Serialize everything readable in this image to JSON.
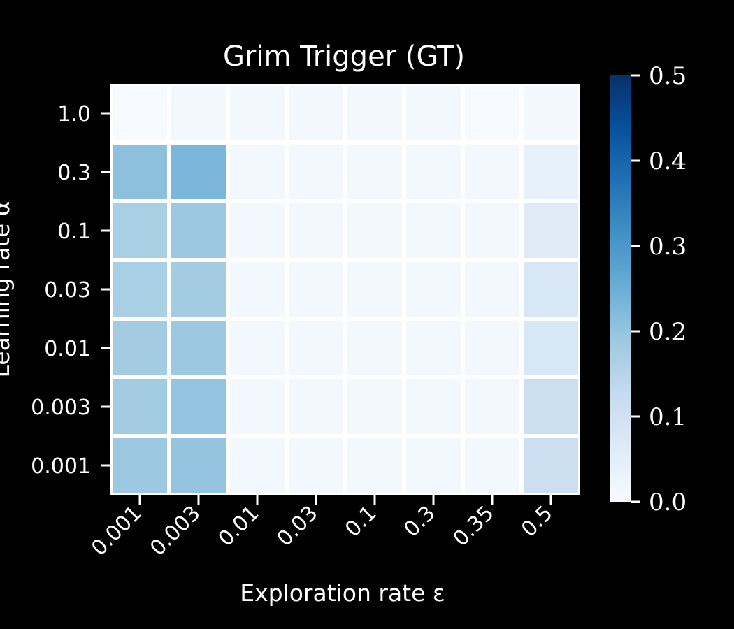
{
  "chart_data": {
    "type": "heatmap",
    "title": "Grim Trigger (GT)",
    "xlabel": "Exploration rate ε",
    "ylabel": "Learning rate α",
    "x_categories": [
      "0.001",
      "0.003",
      "0.01",
      "0.03",
      "0.1",
      "0.3",
      "0.35",
      "0.5"
    ],
    "y_categories": [
      "1.0",
      "0.3",
      "0.1",
      "0.03",
      "0.01",
      "0.003",
      "0.001"
    ],
    "values": [
      [
        0.0,
        0.01,
        0.01,
        0.01,
        0.01,
        0.01,
        0.0,
        0.01
      ],
      [
        0.21,
        0.23,
        0.01,
        0.01,
        0.01,
        0.01,
        0.01,
        0.04
      ],
      [
        0.17,
        0.19,
        0.01,
        0.01,
        0.01,
        0.01,
        0.01,
        0.06
      ],
      [
        0.17,
        0.18,
        0.01,
        0.01,
        0.01,
        0.01,
        0.01,
        0.08
      ],
      [
        0.18,
        0.19,
        0.01,
        0.01,
        0.01,
        0.01,
        0.01,
        0.08
      ],
      [
        0.18,
        0.2,
        0.01,
        0.01,
        0.01,
        0.01,
        0.01,
        0.11
      ],
      [
        0.19,
        0.2,
        0.01,
        0.01,
        0.01,
        0.01,
        0.01,
        0.11
      ]
    ],
    "colorbar": {
      "min": 0.0,
      "max": 0.5,
      "ticks": [
        "0.0",
        "0.1",
        "0.2",
        "0.3",
        "0.4",
        "0.5"
      ],
      "colormap": "Blues"
    },
    "grid": false
  }
}
